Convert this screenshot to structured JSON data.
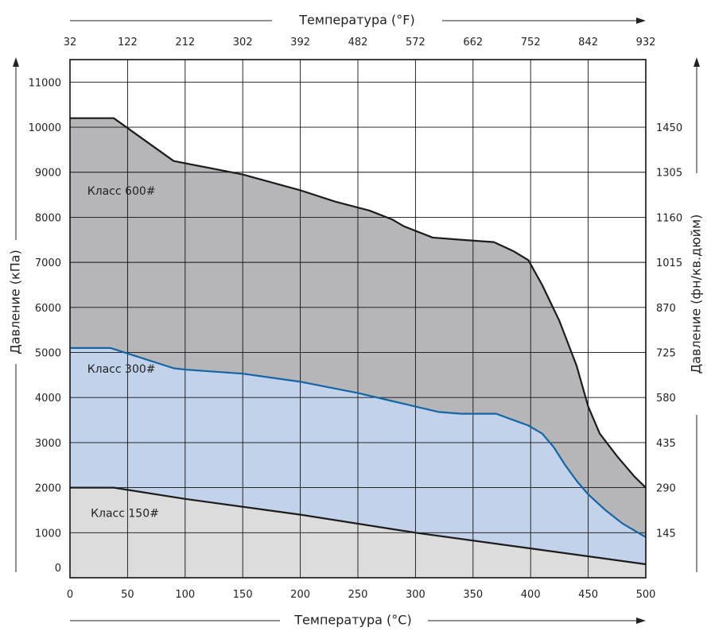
{
  "chart_data": {
    "type": "area",
    "x_axis_bottom": {
      "label": "Температура (°C)",
      "min": 0,
      "max": 500,
      "ticks": [
        0,
        50,
        100,
        150,
        200,
        250,
        300,
        350,
        400,
        450,
        500
      ]
    },
    "x_axis_top": {
      "label": "Температура (°F)",
      "ticks": [
        "32",
        "122",
        "212",
        "302",
        "392",
        "482",
        "572",
        "662",
        "752",
        "842",
        "932"
      ]
    },
    "y_axis_left": {
      "label": "Давление (кПа)",
      "min": 0,
      "max": 11500,
      "ticks": [
        0,
        1000,
        2000,
        3000,
        4000,
        5000,
        6000,
        7000,
        8000,
        9000,
        10000,
        11000
      ]
    },
    "y_axis_right": {
      "label": "Давление (фн/кв.дюйм)",
      "ticks": [
        {
          "label": "145",
          "kpa": 1000
        },
        {
          "label": "290",
          "kpa": 2000
        },
        {
          "label": "435",
          "kpa": 3000
        },
        {
          "label": "580",
          "kpa": 4000
        },
        {
          "label": "725",
          "kpa": 5000
        },
        {
          "label": "870",
          "kpa": 6000
        },
        {
          "label": "1015",
          "kpa": 7000
        },
        {
          "label": "1160",
          "kpa": 8000
        },
        {
          "label": "1305",
          "kpa": 9000
        },
        {
          "label": "1450",
          "kpa": 10000
        }
      ]
    },
    "grid": true,
    "series": [
      {
        "name": "Класс 600#",
        "fill": "#b6b6b9",
        "stroke": "#1c1c1c",
        "label_at": [
          15,
          8500
        ],
        "points": [
          [
            0,
            10200
          ],
          [
            38,
            10200
          ],
          [
            90,
            9250
          ],
          [
            150,
            8950
          ],
          [
            200,
            8600
          ],
          [
            230,
            8350
          ],
          [
            260,
            8150
          ],
          [
            280,
            7950
          ],
          [
            290,
            7800
          ],
          [
            315,
            7550
          ],
          [
            340,
            7500
          ],
          [
            368,
            7450
          ],
          [
            385,
            7250
          ],
          [
            398,
            7050
          ],
          [
            410,
            6500
          ],
          [
            425,
            5700
          ],
          [
            440,
            4700
          ],
          [
            450,
            3800
          ],
          [
            460,
            3200
          ],
          [
            475,
            2700
          ],
          [
            490,
            2250
          ],
          [
            500,
            2000
          ]
        ]
      },
      {
        "name": "Класс 300#",
        "fill": "#c2d2ea",
        "stroke": "#1565a6",
        "label_at": [
          15,
          4550
        ],
        "points": [
          [
            0,
            5100
          ],
          [
            35,
            5100
          ],
          [
            90,
            4650
          ],
          [
            100,
            4620
          ],
          [
            150,
            4530
          ],
          [
            200,
            4350
          ],
          [
            250,
            4100
          ],
          [
            280,
            3920
          ],
          [
            300,
            3800
          ],
          [
            320,
            3680
          ],
          [
            340,
            3640
          ],
          [
            370,
            3640
          ],
          [
            385,
            3500
          ],
          [
            398,
            3380
          ],
          [
            410,
            3200
          ],
          [
            420,
            2900
          ],
          [
            430,
            2500
          ],
          [
            440,
            2150
          ],
          [
            450,
            1850
          ],
          [
            465,
            1500
          ],
          [
            480,
            1200
          ],
          [
            500,
            900
          ]
        ]
      },
      {
        "name": "Класс 150#",
        "fill": "#dcdcdd",
        "stroke": "#1c1c1c",
        "label_at": [
          18,
          1350
        ],
        "points": [
          [
            0,
            2000
          ],
          [
            38,
            2000
          ],
          [
            100,
            1750
          ],
          [
            200,
            1400
          ],
          [
            300,
            1000
          ],
          [
            400,
            650
          ],
          [
            500,
            300
          ]
        ]
      }
    ]
  }
}
